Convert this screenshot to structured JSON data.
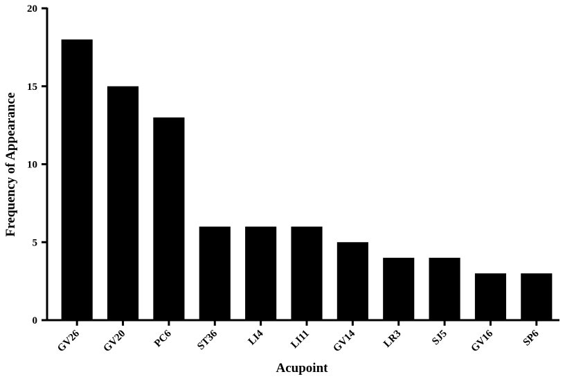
{
  "chart_data": {
    "type": "bar",
    "x_label": "Acupoint",
    "y_label": "Frequency of Appearance",
    "categories": [
      "GV26",
      "GV20",
      "PC6",
      "ST36",
      "LI4",
      "LI11",
      "GV14",
      "LR3",
      "SJ5",
      "GV16",
      "SP6"
    ],
    "values": [
      18,
      15,
      13,
      6,
      6,
      6,
      5,
      4,
      4,
      3,
      3
    ],
    "color": "#000000",
    "ylim": [
      0,
      20
    ],
    "yticks": [
      0,
      5,
      10,
      15,
      20
    ],
    "grid": false
  }
}
